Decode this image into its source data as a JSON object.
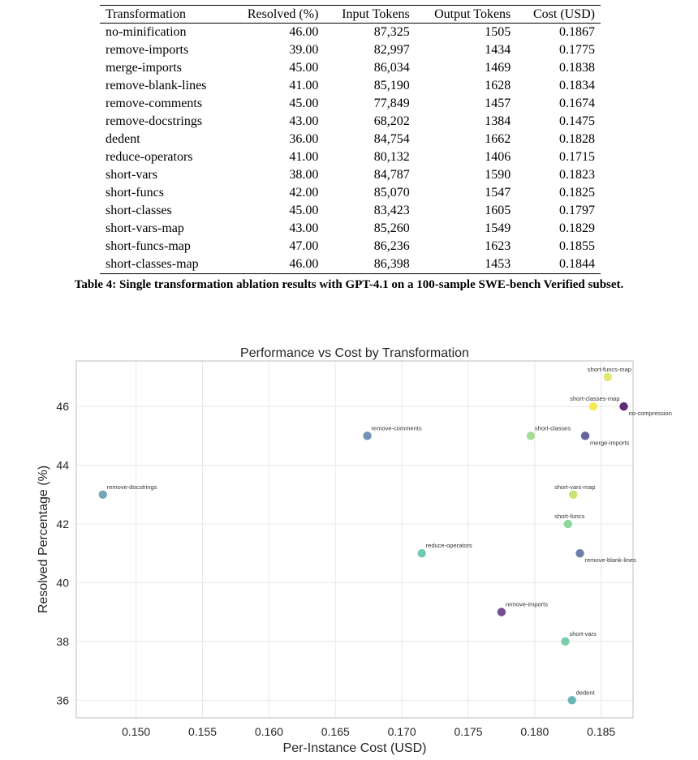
{
  "table": {
    "columns": [
      "Transformation",
      "Resolved (%)",
      "Input Tokens",
      "Output Tokens",
      "Cost (USD)"
    ],
    "rows": [
      [
        "no-minification",
        "46.00",
        "87,325",
        "1505",
        "0.1867"
      ],
      [
        "remove-imports",
        "39.00",
        "82,997",
        "1434",
        "0.1775"
      ],
      [
        "merge-imports",
        "45.00",
        "86,034",
        "1469",
        "0.1838"
      ],
      [
        "remove-blank-lines",
        "41.00",
        "85,190",
        "1628",
        "0.1834"
      ],
      [
        "remove-comments",
        "45.00",
        "77,849",
        "1457",
        "0.1674"
      ],
      [
        "remove-docstrings",
        "43.00",
        "68,202",
        "1384",
        "0.1475"
      ],
      [
        "dedent",
        "36.00",
        "84,754",
        "1662",
        "0.1828"
      ],
      [
        "reduce-operators",
        "41.00",
        "80,132",
        "1406",
        "0.1715"
      ],
      [
        "short-vars",
        "38.00",
        "84,787",
        "1590",
        "0.1823"
      ],
      [
        "short-funcs",
        "42.00",
        "85,070",
        "1547",
        "0.1825"
      ],
      [
        "short-classes",
        "45.00",
        "83,423",
        "1605",
        "0.1797"
      ],
      [
        "short-vars-map",
        "43.00",
        "85,260",
        "1549",
        "0.1829"
      ],
      [
        "short-funcs-map",
        "47.00",
        "86,236",
        "1623",
        "0.1855"
      ],
      [
        "short-classes-map",
        "46.00",
        "86,398",
        "1453",
        "0.1844"
      ]
    ],
    "caption": "Table 4: Single transformation ablation results with GPT-4.1 on a 100-sample SWE-bench Verified subset."
  },
  "chart_data": {
    "type": "scatter",
    "title": "Performance vs Cost by Transformation",
    "xlabel": "Per-Instance Cost (USD)",
    "ylabel": "Resolved Percentage (%)",
    "xlim": [
      0.1455,
      0.1874
    ],
    "ylim": [
      35.4,
      47.55
    ],
    "xticks": [
      "0.150",
      "0.155",
      "0.160",
      "0.165",
      "0.170",
      "0.175",
      "0.180",
      "0.185"
    ],
    "yticks": [
      "36",
      "38",
      "40",
      "42",
      "44",
      "46"
    ],
    "grid": true,
    "colormap": "viridis",
    "points": [
      {
        "label": "no-compression",
        "x": 0.1867,
        "y": 46,
        "color": "#46085c",
        "label_pos": "below-right"
      },
      {
        "label": "remove-imports",
        "x": 0.1775,
        "y": 39,
        "color": "#5b2f83",
        "label_pos": "above-right"
      },
      {
        "label": "merge-imports",
        "x": 0.1838,
        "y": 45,
        "color": "#4c4a8c",
        "label_pos": "below-right"
      },
      {
        "label": "remove-blank-lines",
        "x": 0.1834,
        "y": 41,
        "color": "#55689a",
        "label_pos": "below-right"
      },
      {
        "label": "remove-comments",
        "x": 0.1674,
        "y": 45,
        "color": "#5c7fa8",
        "label_pos": "above-right"
      },
      {
        "label": "remove-docstrings",
        "x": 0.1475,
        "y": 43,
        "color": "#5d97a8",
        "label_pos": "above-right"
      },
      {
        "label": "dedent",
        "x": 0.1828,
        "y": 36,
        "color": "#51aaa8",
        "label_pos": "above-right"
      },
      {
        "label": "reduce-operators",
        "x": 0.1715,
        "y": 41,
        "color": "#55bfa8",
        "label_pos": "above-right"
      },
      {
        "label": "short-vars",
        "x": 0.1823,
        "y": 38,
        "color": "#63c69d",
        "label_pos": "above-right"
      },
      {
        "label": "short-funcs",
        "x": 0.1825,
        "y": 42,
        "color": "#78d08c",
        "label_pos": "above-center"
      },
      {
        "label": "short-classes",
        "x": 0.1797,
        "y": 45,
        "color": "#95d785",
        "label_pos": "above-right"
      },
      {
        "label": "short-vars-map",
        "x": 0.1829,
        "y": 43,
        "color": "#bde05a",
        "label_pos": "above-center"
      },
      {
        "label": "short-funcs-map",
        "x": 0.1855,
        "y": 47,
        "color": "#dfe35a",
        "label_pos": "above-center"
      },
      {
        "label": "short-classes-map",
        "x": 0.1844,
        "y": 46,
        "color": "#f5e637",
        "label_pos": "above-center"
      }
    ]
  }
}
